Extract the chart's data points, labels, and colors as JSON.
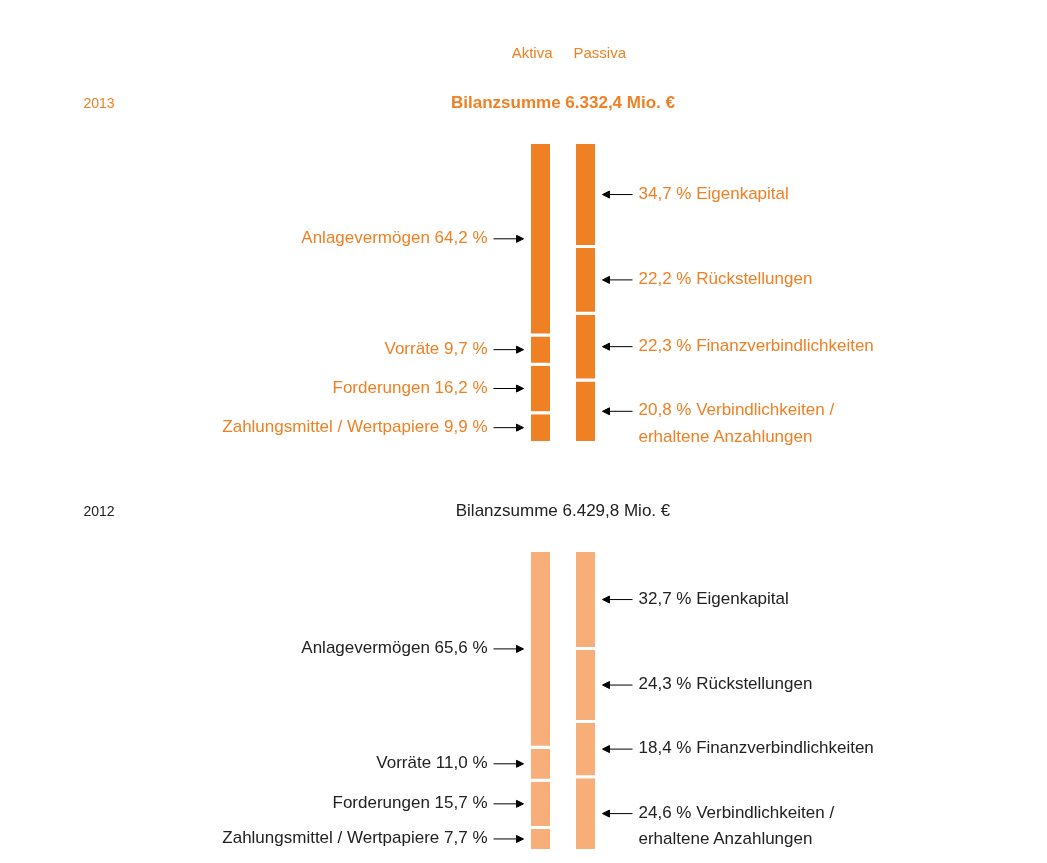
{
  "chart_data": [
    {
      "type": "bar",
      "stacked": true,
      "annotations": [
        "2013"
      ],
      "title": "Bilanzsumme 6.332,4 Mio. €",
      "categories": [
        "Aktiva",
        "Passiva"
      ],
      "series": [
        {
          "color": "#f08024",
          "values": [
            9.9,
            null
          ],
          "value_labels": [
            "Zahlungsmittel / Wertpapiere 9,9 %",
            null
          ]
        },
        {
          "color": "#f08024",
          "values": [
            16.2,
            null
          ],
          "value_labels": [
            "Forderungen 16,2 %",
            null
          ]
        },
        {
          "color": "#f08024",
          "values": [
            9.7,
            null
          ],
          "value_labels": [
            "Vorräte 9,7 %",
            null
          ]
        },
        {
          "color": "#f08024",
          "values": [
            64.2,
            null
          ],
          "value_labels": [
            "Anlagevermögen 64,2 %",
            null
          ]
        },
        {
          "color": "#f08024",
          "values": [
            null,
            20.8
          ],
          "value_labels": [
            null,
            "20,8 % Verbindlichkeiten /\nerhaltene Anzahlungen"
          ]
        },
        {
          "color": "#f08024",
          "values": [
            null,
            22.3
          ],
          "value_labels": [
            null,
            "22,3 % Finanzverbindlichkeiten"
          ]
        },
        {
          "color": "#f08024",
          "values": [
            null,
            22.2
          ],
          "value_labels": [
            null,
            "22,2 % Rückstellungen"
          ]
        },
        {
          "color": "#f08024",
          "values": [
            null,
            34.7
          ],
          "value_labels": [
            null,
            "34,7 % Eigenkapital"
          ]
        }
      ]
    },
    {
      "type": "bar",
      "stacked": true,
      "annotations": [
        "2012"
      ],
      "title": "Bilanzsumme 6.429,8 Mio. €",
      "categories": [
        null,
        null
      ],
      "series": [
        {
          "color": "#f7ae78",
          "values": [
            7.7,
            null
          ],
          "value_labels": [
            "Zahlungsmittel / Wertpapiere 7,7 %",
            null
          ]
        },
        {
          "color": "#f7ae78",
          "values": [
            15.7,
            null
          ],
          "value_labels": [
            "Forderungen 15,7 %",
            null
          ]
        },
        {
          "color": "#f7ae78",
          "values": [
            11.0,
            null
          ],
          "value_labels": [
            "Vorräte 11,0 %",
            null
          ]
        },
        {
          "color": "#f7ae78",
          "values": [
            65.6,
            null
          ],
          "value_labels": [
            "Anlagevermögen 65,6 %",
            null
          ]
        },
        {
          "color": "#f7ae78",
          "values": [
            null,
            24.6
          ],
          "value_labels": [
            null,
            "24,6 % Verbindlichkeiten /\nerhaltene Anzahlungen"
          ]
        },
        {
          "color": "#f7ae78",
          "values": [
            null,
            18.4
          ],
          "value_labels": [
            null,
            "18,4 % Finanzverbindlichkeiten"
          ]
        },
        {
          "color": "#f7ae78",
          "values": [
            null,
            24.3
          ],
          "value_labels": [
            null,
            "24,3 % Rückstellungen"
          ]
        },
        {
          "color": "#f7ae78",
          "values": [
            null,
            32.7
          ],
          "value_labels": [
            null,
            "32,7 % Eigenkapital"
          ]
        }
      ]
    }
  ]
}
